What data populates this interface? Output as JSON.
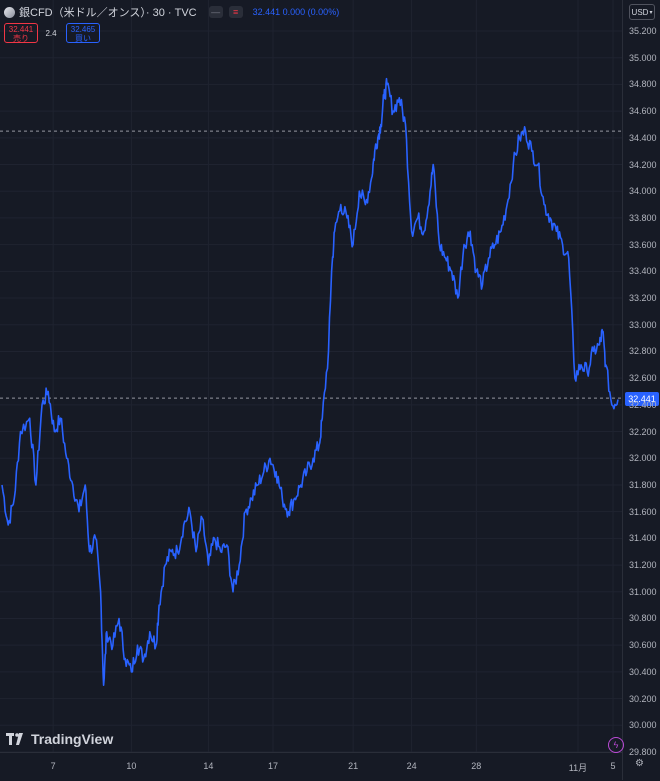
{
  "header": {
    "symbol": "銀CFD（米ドル／オンス）· 30 · TVC",
    "quote": "32.441 0.000 (0.00%)",
    "sell": {
      "price": "32.441",
      "label": "売り"
    },
    "spread": "2.4",
    "buy": {
      "price": "32.465",
      "label": "買い"
    }
  },
  "currency": "USD",
  "current_price_label": "32.441",
  "brand": "TradingView",
  "icons": [
    "silver-symbol-icon",
    "minus-icon",
    "equals-icon",
    "chevron-down-icon",
    "tradingview-logo-icon",
    "bolt-icon",
    "gear-icon"
  ],
  "colors": {
    "line": "#2962ff",
    "background": "#161a25",
    "sell": "#f23645",
    "buy": "#2962ff"
  },
  "chart_data": {
    "type": "line",
    "ylim": [
      29.8,
      35.2
    ],
    "y_ticks": [
      "35.200",
      "35.000",
      "34.800",
      "34.600",
      "34.400",
      "34.200",
      "34.000",
      "33.800",
      "33.600",
      "33.400",
      "33.200",
      "33.000",
      "32.800",
      "32.600",
      "32.400",
      "32.200",
      "32.000",
      "31.800",
      "31.600",
      "31.400",
      "31.200",
      "31.000",
      "30.800",
      "30.600",
      "30.400",
      "30.200",
      "30.000",
      "29.800"
    ],
    "x_ticks": [
      {
        "label": "7",
        "t": 0.083
      },
      {
        "label": "10",
        "t": 0.21
      },
      {
        "label": "14",
        "t": 0.335
      },
      {
        "label": "17",
        "t": 0.44
      },
      {
        "label": "21",
        "t": 0.57
      },
      {
        "label": "24",
        "t": 0.665
      },
      {
        "label": "28",
        "t": 0.77
      },
      {
        "label": "11月",
        "t": 0.935
      },
      {
        "label": "5",
        "t": 0.992
      }
    ],
    "reference_lines": [
      34.45,
      32.45
    ],
    "series": [
      {
        "points": [
          [
            0.0,
            31.8
          ],
          [
            0.01,
            31.5
          ],
          [
            0.02,
            31.7
          ],
          [
            0.03,
            32.2
          ],
          [
            0.045,
            32.3
          ],
          [
            0.055,
            31.8
          ],
          [
            0.065,
            32.4
          ],
          [
            0.075,
            32.5
          ],
          [
            0.085,
            32.2
          ],
          [
            0.095,
            32.3
          ],
          [
            0.105,
            32.0
          ],
          [
            0.115,
            31.8
          ],
          [
            0.125,
            31.6
          ],
          [
            0.135,
            31.8
          ],
          [
            0.142,
            31.3
          ],
          [
            0.152,
            31.4
          ],
          [
            0.16,
            31.0
          ],
          [
            0.165,
            30.3
          ],
          [
            0.17,
            30.7
          ],
          [
            0.18,
            30.6
          ],
          [
            0.19,
            30.8
          ],
          [
            0.2,
            30.5
          ],
          [
            0.21,
            30.4
          ],
          [
            0.22,
            30.6
          ],
          [
            0.23,
            30.5
          ],
          [
            0.24,
            30.7
          ],
          [
            0.25,
            30.6
          ],
          [
            0.255,
            30.9
          ],
          [
            0.265,
            31.2
          ],
          [
            0.275,
            31.3
          ],
          [
            0.285,
            31.3
          ],
          [
            0.295,
            31.5
          ],
          [
            0.305,
            31.6
          ],
          [
            0.315,
            31.3
          ],
          [
            0.325,
            31.55
          ],
          [
            0.335,
            31.2
          ],
          [
            0.345,
            31.4
          ],
          [
            0.355,
            31.3
          ],
          [
            0.365,
            31.35
          ],
          [
            0.375,
            31.0
          ],
          [
            0.385,
            31.2
          ],
          [
            0.395,
            31.6
          ],
          [
            0.405,
            31.7
          ],
          [
            0.415,
            31.8
          ],
          [
            0.425,
            31.9
          ],
          [
            0.435,
            32.0
          ],
          [
            0.445,
            31.9
          ],
          [
            0.455,
            31.7
          ],
          [
            0.465,
            31.6
          ],
          [
            0.475,
            31.7
          ],
          [
            0.485,
            31.8
          ],
          [
            0.495,
            31.9
          ],
          [
            0.505,
            32.0
          ],
          [
            0.515,
            32.1
          ],
          [
            0.52,
            32.3
          ],
          [
            0.53,
            32.8
          ],
          [
            0.535,
            33.4
          ],
          [
            0.54,
            33.7
          ],
          [
            0.55,
            33.9
          ],
          [
            0.56,
            33.8
          ],
          [
            0.57,
            33.6
          ],
          [
            0.58,
            34.0
          ],
          [
            0.59,
            33.9
          ],
          [
            0.6,
            34.1
          ],
          [
            0.605,
            34.3
          ],
          [
            0.61,
            34.4
          ],
          [
            0.615,
            34.5
          ],
          [
            0.62,
            34.7
          ],
          [
            0.625,
            34.8
          ],
          [
            0.635,
            34.6
          ],
          [
            0.645,
            34.7
          ],
          [
            0.655,
            34.5
          ],
          [
            0.665,
            33.7
          ],
          [
            0.675,
            33.8
          ],
          [
            0.685,
            33.7
          ],
          [
            0.695,
            34.0
          ],
          [
            0.7,
            34.2
          ],
          [
            0.71,
            33.6
          ],
          [
            0.72,
            33.5
          ],
          [
            0.73,
            33.4
          ],
          [
            0.74,
            33.2
          ],
          [
            0.75,
            33.6
          ],
          [
            0.76,
            33.7
          ],
          [
            0.77,
            33.4
          ],
          [
            0.78,
            33.3
          ],
          [
            0.79,
            33.5
          ],
          [
            0.8,
            33.6
          ],
          [
            0.81,
            33.7
          ],
          [
            0.82,
            33.9
          ],
          [
            0.83,
            34.2
          ],
          [
            0.84,
            34.4
          ],
          [
            0.85,
            34.45
          ],
          [
            0.86,
            34.3
          ],
          [
            0.87,
            34.2
          ],
          [
            0.88,
            33.9
          ],
          [
            0.89,
            33.8
          ],
          [
            0.9,
            33.7
          ],
          [
            0.91,
            33.6
          ],
          [
            0.92,
            33.5
          ],
          [
            0.93,
            32.6
          ],
          [
            0.94,
            32.7
          ],
          [
            0.95,
            32.65
          ],
          [
            0.96,
            32.8
          ],
          [
            0.97,
            32.85
          ],
          [
            0.975,
            32.95
          ],
          [
            0.98,
            32.7
          ],
          [
            0.99,
            32.4
          ],
          [
            1.0,
            32.44
          ]
        ]
      }
    ]
  }
}
